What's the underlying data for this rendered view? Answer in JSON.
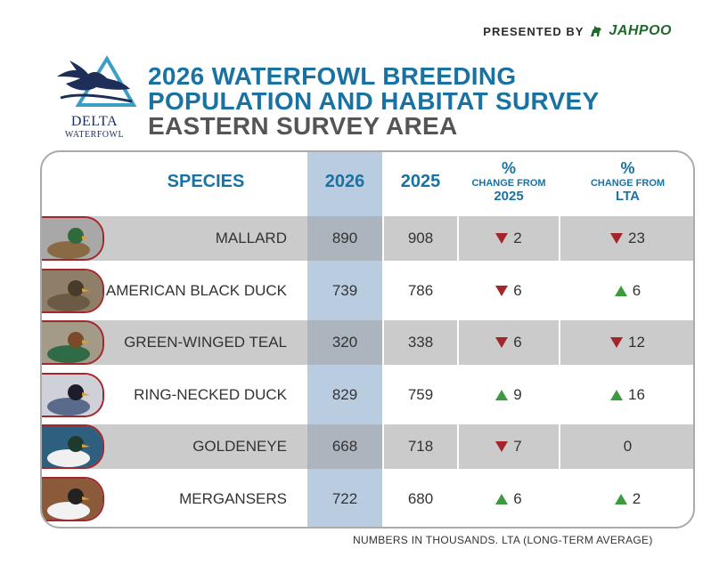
{
  "sponsor": {
    "presented_by": "PRESENTED BY",
    "brand": "JAHPOO"
  },
  "logo": {
    "line1": "DELTA",
    "line2": "WATERFOWL"
  },
  "title": {
    "line1": "2026 WATERFOWL BREEDING",
    "line2": "POPULATION AND HABITAT SURVEY",
    "line3": "EASTERN SURVEY AREA"
  },
  "headers": {
    "species": "SPECIES",
    "y2026": "2026",
    "y2025": "2025",
    "chg2025_pct": "%",
    "chg2025_label": "CHANGE FROM",
    "chg2025_year": "2025",
    "chgLTA_pct": "%",
    "chgLTA_label": "CHANGE FROM",
    "chgLTA_year": "LTA"
  },
  "footnote": "NUMBERS IN THOUSANDS. LTA (LONG-TERM AVERAGE)",
  "colors": {
    "accent": "#1a72a3",
    "down": "#a3262a",
    "up": "#3e9a3e",
    "col2026": "#bacde0"
  },
  "chart_data": {
    "type": "table",
    "columns": [
      "SPECIES",
      "2026",
      "2025",
      "% CHANGE FROM 2025",
      "% CHANGE FROM LTA"
    ],
    "rows": [
      {
        "species": "MALLARD",
        "y2026": "890",
        "y2025": "908",
        "chg2025": "2",
        "chg2025_dir": "down",
        "chgLTA": "23",
        "chgLTA_dir": "down"
      },
      {
        "species": "AMERICAN BLACK DUCK",
        "y2026": "739",
        "y2025": "786",
        "chg2025": "6",
        "chg2025_dir": "down",
        "chgLTA": "6",
        "chgLTA_dir": "up"
      },
      {
        "species": "GREEN-WINGED TEAL",
        "y2026": "320",
        "y2025": "338",
        "chg2025": "6",
        "chg2025_dir": "down",
        "chgLTA": "12",
        "chgLTA_dir": "down"
      },
      {
        "species": "RING-NECKED DUCK",
        "y2026": "829",
        "y2025": "759",
        "chg2025": "9",
        "chg2025_dir": "up",
        "chgLTA": "16",
        "chgLTA_dir": "up"
      },
      {
        "species": "GOLDENEYE",
        "y2026": "668",
        "y2025": "718",
        "chg2025": "7",
        "chg2025_dir": "down",
        "chgLTA": "0",
        "chgLTA_dir": "none"
      },
      {
        "species": "MERGANSERS",
        "y2026": "722",
        "y2025": "680",
        "chg2025": "6",
        "chg2025_dir": "up",
        "chgLTA": "2",
        "chgLTA_dir": "up"
      }
    ]
  }
}
